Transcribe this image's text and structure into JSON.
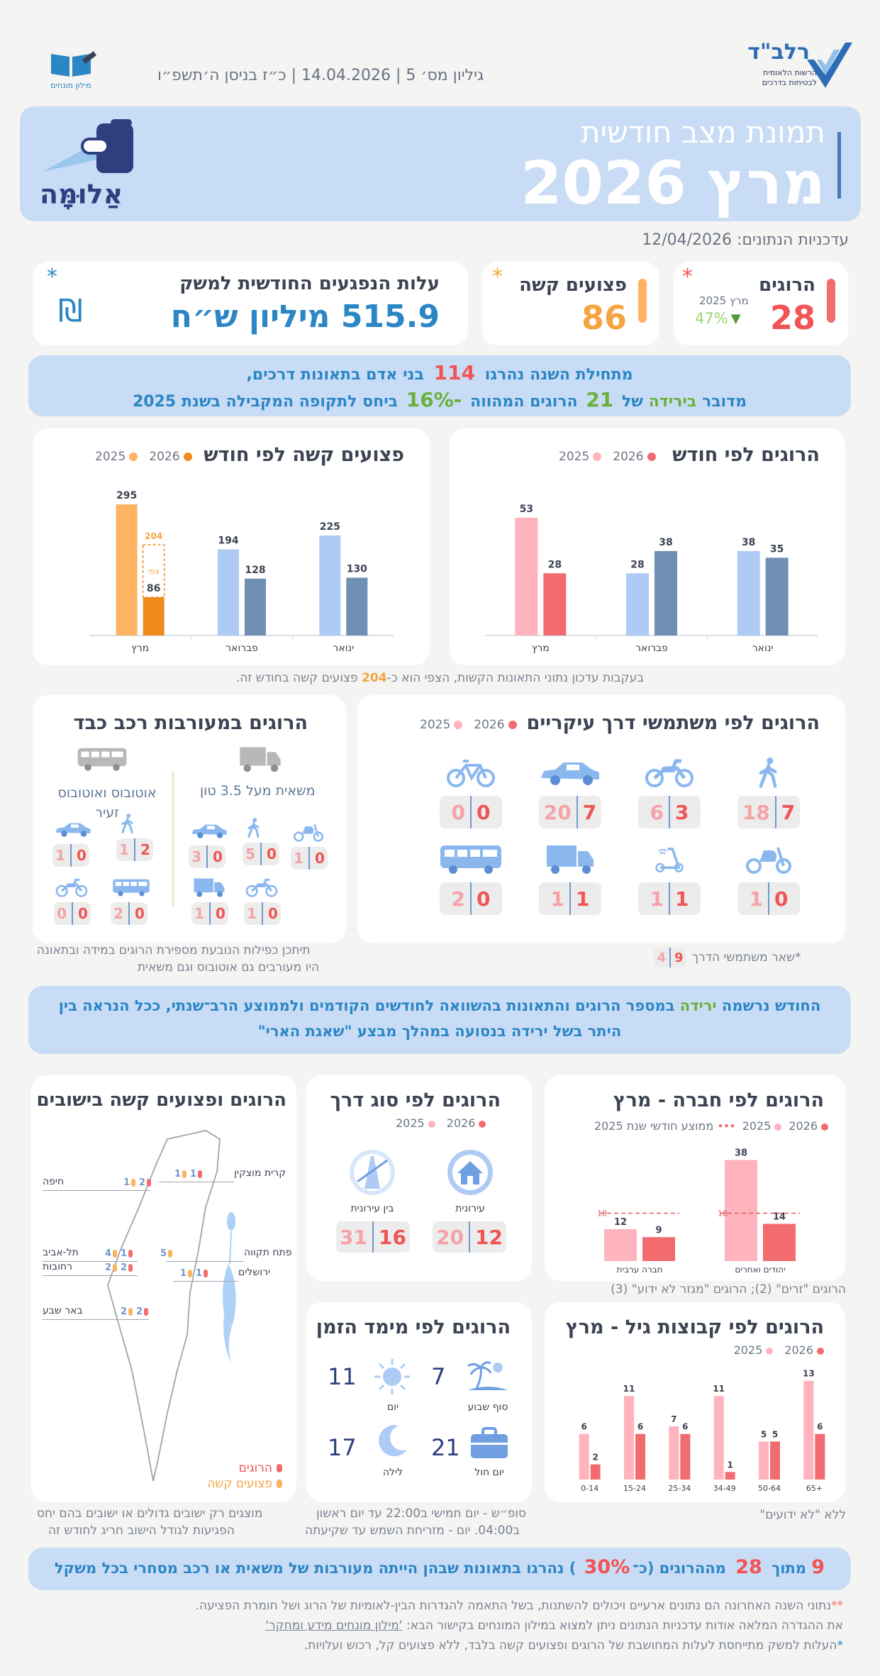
{
  "header": {
    "issue_line": "גיליון מס׳ 5 | 14.04.2026 | כ״ז בניסן ה׳תשפ״ו",
    "org_name": "רלב\"ד",
    "org_sub1": "הרשות הלאומית",
    "org_sub2": "לבטיחות בדרכים",
    "glossary_label": "מילון מונחים"
  },
  "banner": {
    "subtitle": "תמונת מצב חודשית",
    "title": "מרץ 2026",
    "brand": "אַלוּמָּה"
  },
  "updated": "עדכניות הנתונים: 12/04/2026",
  "kpis": {
    "killed": {
      "label": "הרוגים",
      "value": "28",
      "asterisk": "*",
      "compare_label": "מרץ 2025",
      "change": "47%",
      "arrow": "▼"
    },
    "injured": {
      "label": "פצועים קשה",
      "value": "86",
      "asterisk": "*"
    },
    "cost": {
      "label": "עלות הנפגעים החודשית למשק",
      "value": "515.9 מיליון ש״ח",
      "asterisk": "*",
      "currency_symbol": "₪"
    }
  },
  "summary": {
    "line1_a": "מתחילת השנה נהרגו",
    "line1_num": "114",
    "line1_b": "בני אדם בתאונות דרכים,",
    "line2_a": "מדובר",
    "line2_b": "בירידה",
    "line2_c": "של",
    "line2_num": "21",
    "line2_d": "הרוגים המהווה",
    "line2_pct": "16%-",
    "line2_e": "ביחס לתקופה המקבילה בשנת 2025"
  },
  "killed_by_month": {
    "title": "הרוגים לפי חודש",
    "legend_2026": "2026",
    "legend_2025": "2025"
  },
  "injured_by_month": {
    "title": "פצועים קשה לפי חודש",
    "legend_2026": "2026",
    "legend_2025": "2025",
    "expected_label": "צפי",
    "expected_value": "204"
  },
  "chart_data": [
    {
      "type": "bar",
      "title": "הרוגים לפי חודש",
      "categories": [
        "ינואר",
        "פברואר",
        "מרץ"
      ],
      "series": [
        {
          "name": "2025",
          "values": [
            38,
            28,
            53
          ]
        },
        {
          "name": "2026",
          "values": [
            35,
            38,
            28
          ]
        }
      ],
      "legend": "top-left"
    },
    {
      "type": "bar",
      "title": "פצועים קשה לפי חודש",
      "categories": [
        "ינואר",
        "פברואר",
        "מרץ"
      ],
      "series": [
        {
          "name": "2025",
          "values": [
            225,
            194,
            295
          ]
        },
        {
          "name": "2026",
          "values": [
            130,
            128,
            86
          ]
        }
      ],
      "annotations": [
        {
          "category": "מרץ",
          "label": "צפי",
          "value": 204
        }
      ],
      "legend": "top-left"
    },
    {
      "type": "bar",
      "title": "הרוגים לפי חברה - מרץ",
      "categories": [
        "יהודים ואחרים",
        "חברה ערבית"
      ],
      "series": [
        {
          "name": "2025",
          "values": [
            38,
            12
          ]
        },
        {
          "name": "2026",
          "values": [
            14,
            9
          ]
        },
        {
          "name": "ממוצע חודשי שנת 2025",
          "values": [
            18,
            18
          ]
        }
      ],
      "legend": "top"
    },
    {
      "type": "bar",
      "title": "הרוגים לפי קבוצות גיל - מרץ",
      "categories": [
        "0-14",
        "15-24",
        "25-34",
        "34-49",
        "50-64",
        "65+"
      ],
      "series": [
        {
          "name": "2025",
          "values": [
            6,
            11,
            7,
            11,
            5,
            13
          ]
        },
        {
          "name": "2026",
          "values": [
            2,
            6,
            6,
            1,
            5,
            6
          ]
        }
      ],
      "legend": "top"
    }
  ],
  "chart_footnote": {
    "a": "בעקבות עדכון נתוני התאונות הקשות, הצפי הוא כ-",
    "num": "204",
    "b": "פצועים קשה בחודש  זה."
  },
  "road_users": {
    "title": "הרוגים לפי משתמשי דרך עיקריים",
    "legend_2026": "2026",
    "legend_2025": "2025",
    "items": [
      {
        "icon": "pedestrian-icon",
        "v2026": "7",
        "v2025": "18"
      },
      {
        "icon": "motorcycle-icon",
        "v2026": "3",
        "v2025": "6"
      },
      {
        "icon": "car-icon",
        "v2026": "7",
        "v2025": "20"
      },
      {
        "icon": "bicycle-icon",
        "v2026": "0",
        "v2025": "0"
      },
      {
        "icon": "scooter-icon",
        "v2026": "0",
        "v2025": "1"
      },
      {
        "icon": "electric-scooter-icon",
        "v2026": "1",
        "v2025": "1"
      },
      {
        "icon": "truck-icon",
        "v2026": "1",
        "v2025": "1"
      },
      {
        "icon": "bus-icon",
        "v2026": "0",
        "v2025": "2"
      }
    ],
    "others_label": "*שאר משתמשי הדרך",
    "others_2026": "9",
    "others_2025": "4"
  },
  "heavy_vehicles": {
    "title": "הרוגים במעורבות רכב כבד",
    "truck_label": "משאית מעל 3.5 טון",
    "bus_label": "אוטובוס ואוטובוס זעיר",
    "truck_items": [
      {
        "icon": "scooter-icon",
        "v2026": "0",
        "v2025": "1"
      },
      {
        "icon": "pedestrian-icon",
        "v2026": "0",
        "v2025": "5"
      },
      {
        "icon": "car-icon",
        "v2026": "0",
        "v2025": "3"
      },
      {
        "icon": "motorcycle-icon",
        "v2026": "0",
        "v2025": "1"
      },
      {
        "icon": "truck-icon",
        "v2026": "0",
        "v2025": "1"
      }
    ],
    "bus_items": [
      {
        "icon": "pedestrian-icon",
        "v2026": "2",
        "v2025": "1"
      },
      {
        "icon": "car-icon",
        "v2026": "0",
        "v2025": "1"
      },
      {
        "icon": "bus-icon",
        "v2026": "0",
        "v2025": "2"
      },
      {
        "icon": "motorcycle-icon",
        "v2026": "0",
        "v2025": "0"
      }
    ],
    "note1": "תיתכן כפילות הנובעת מספירת הרוגים במידה ובתאונה",
    "note2": "היו מעורבים גם אוטובוס וגם משאית"
  },
  "decline_banner": {
    "a": "החודש נרשמה",
    "word": "ירידה",
    "b": "במספר הרוגים והתאונות בהשוואה לחודשים הקודמים ולממוצע הרב־שנתי, ככל הנראה בין",
    "line2": "היתר בשל ירידה בנסועה במהלך מבצע \"שאגת הארי\""
  },
  "by_society": {
    "title": "הרוגים לפי חברה - מרץ",
    "legend_2026": "2026",
    "legend_2025": "2025",
    "legend_avg": "ממוצע חודשי שנת 2025",
    "note": "הרוגים \"זרים\" (2); הרוגים \"מגזר לא ידוע\" (3)"
  },
  "by_road": {
    "title": "הרוגים לפי סוג דרך",
    "legend_2026": "2026",
    "legend_2025": "2025",
    "urban_label": "עירונית",
    "urban_2026": "12",
    "urban_2025": "20",
    "interurban_label": "בין עירונית",
    "interurban_2026": "16",
    "interurban_2025": "31"
  },
  "by_settlement": {
    "title": "הרוגים ופצועים קשה בישובים",
    "legend_killed": "הרוגים",
    "legend_injured": "פצועים קשה",
    "cities": [
      {
        "name": "קרית מוצקין",
        "killed": "1",
        "injured": "1"
      },
      {
        "name": "חיפה",
        "killed": "2",
        "injured": "1"
      },
      {
        "name": "פתח תקווה",
        "killed": "",
        "injured": "5"
      },
      {
        "name": "תל-אביב",
        "killed": "1",
        "injured": "4"
      },
      {
        "name": "רחובות",
        "killed": "2",
        "injured": "2"
      },
      {
        "name": "ירושלים",
        "killed": "1",
        "injured": "1"
      },
      {
        "name": "באר שבע",
        "killed": "2",
        "injured": "2"
      }
    ],
    "note1": "מוצגים רק ישובים גדולים או ישובים בהם יחס",
    "note2": "הפגיעות לגודל הישוב חריג לחודש זה"
  },
  "by_age": {
    "title": "הרוגים לפי קבוצות גיל - מרץ",
    "legend_2026": "2026",
    "legend_2025": "2025",
    "note": "ללא \"לא ידועים\""
  },
  "by_time": {
    "title": "הרוגים לפי מימד הזמן",
    "weekend_label": "סוף שבוע",
    "weekend_value": "7",
    "day_label": "יום",
    "day_value": "11",
    "weekday_label": "יום חול",
    "weekday_value": "21",
    "night_label": "לילה",
    "night_value": "17",
    "note1": "סופ״ש - יום חמישי ב22:00 עד יום ראשון",
    "note2": "ב04:00. יום - מזריחת השמש עד שקיעתה"
  },
  "bottom_banner": {
    "num1": "9",
    "a": "מתוך",
    "num2": "28",
    "b": "מההרוגים (כ־",
    "pct": "30%",
    "c": ") נהרגו בתאונות שבהן הייתה מעורבות של משאית או רכב מסחרי בכל משקל"
  },
  "footnotes": {
    "line1_star": "**",
    "line1": "נתוני השנה האחרונה הם נתונים ארעיים ויכולים להשתנות, בשל התאמה להגדרות הבין-לאומיות של הרוג ושל חומרת הפציעה.",
    "line2_a": "את ההגדרה המלאה אודות עדכניות הנתונים ניתן למצוא במילון המונחים בקישור הבא:",
    "line2_link": "'מילון מונחים מידע ומחקר'",
    "line3_star": "*",
    "line3": "העלות למשק מתייחסת לעלות המחושבת של הרוגים ופצועים קשה בלבד, ללא פצועים קל, רכוש ועלויות."
  },
  "colors": {
    "killed_2026": "#f26b6e",
    "killed_2025": "#ffb3bd",
    "injured_2026": "#f08a1a",
    "injured_2025": "#fdb362",
    "blue_2025": "#aecbf6",
    "blue_2026": "#6f8fb5",
    "banner_bg": "#c9dcf6",
    "accent_blue": "#2a86c5"
  }
}
